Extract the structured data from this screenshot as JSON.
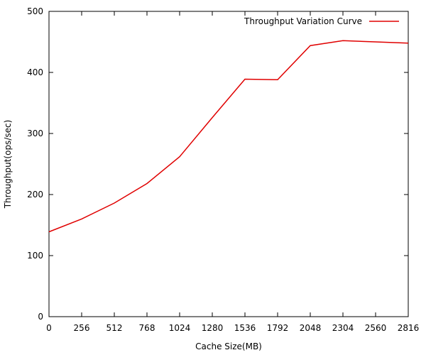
{
  "chart_data": {
    "type": "line",
    "title": "",
    "xlabel": "Cache Size(MB)",
    "ylabel": "Throughput(ops/sec)",
    "xlim": [
      0,
      2816
    ],
    "ylim": [
      0,
      500
    ],
    "xticks": [
      0,
      256,
      512,
      768,
      1024,
      1280,
      1536,
      1792,
      2048,
      2304,
      2560,
      2816
    ],
    "yticks": [
      0,
      100,
      200,
      300,
      400,
      500
    ],
    "grid": false,
    "legend_position": "top-right",
    "series": [
      {
        "name": "Throughput Variation Curve",
        "color": "#e00000",
        "x": [
          0,
          256,
          512,
          768,
          1024,
          1280,
          1536,
          1792,
          2048,
          2304,
          2560,
          2816
        ],
        "y": [
          139,
          160,
          186,
          218,
          262,
          326,
          389,
          388,
          444,
          452,
          450,
          448
        ]
      }
    ]
  }
}
